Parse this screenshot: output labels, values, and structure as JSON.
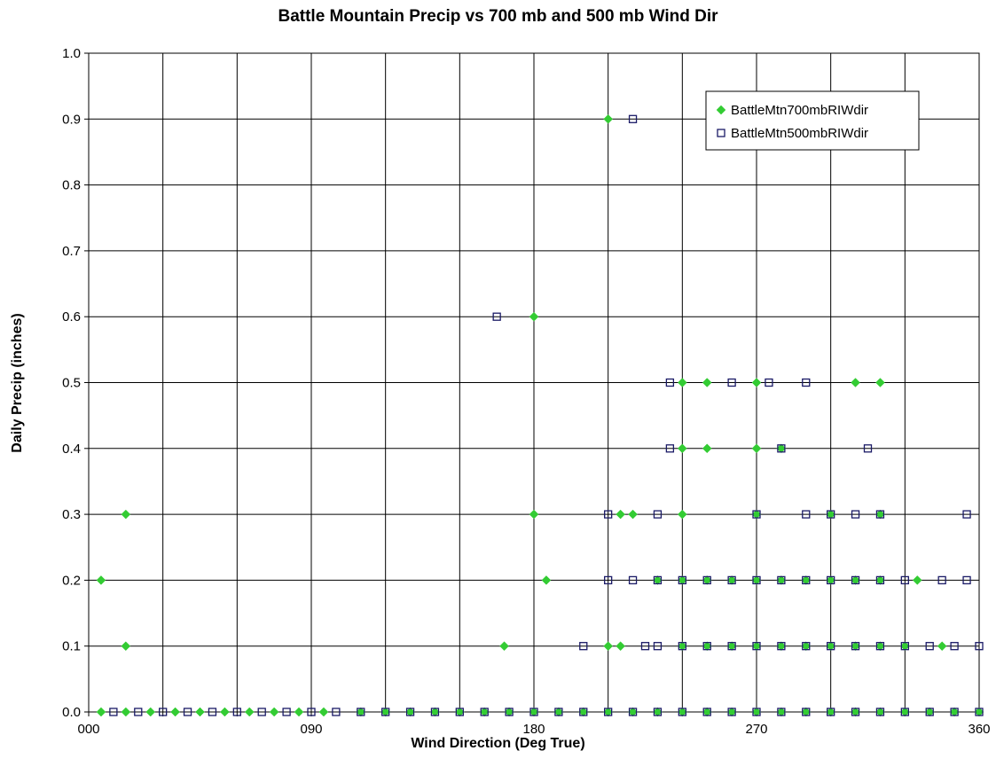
{
  "chart_data": {
    "type": "scatter",
    "title": "Battle Mountain Precip vs 700 mb and 500 mb Wind Dir",
    "xlabel": "Wind Direction (Deg True)",
    "ylabel": "Daily Precip (inches)",
    "xlim": [
      0,
      360
    ],
    "ylim": [
      0,
      1.0
    ],
    "x_ticks": [
      0,
      90,
      180,
      270,
      360
    ],
    "x_tick_labels": [
      "000",
      "090",
      "180",
      "270",
      "360"
    ],
    "x_gridlines_every": 30,
    "y_ticks": [
      0.0,
      0.1,
      0.2,
      0.3,
      0.4,
      0.5,
      0.6,
      0.7,
      0.8,
      0.9,
      1.0
    ],
    "y_tick_labels": [
      "0.0",
      "0.1",
      "0.2",
      "0.3",
      "0.4",
      "0.5",
      "0.6",
      "0.7",
      "0.8",
      "0.9",
      "1.0"
    ],
    "grid": true,
    "legend_position": "top-right",
    "series": [
      {
        "name": "BattleMtn700mbRIWdir",
        "marker": "diamond",
        "color": "#33cc33",
        "points": [
          [
            5,
            0
          ],
          [
            15,
            0
          ],
          [
            25,
            0
          ],
          [
            35,
            0
          ],
          [
            45,
            0
          ],
          [
            55,
            0
          ],
          [
            65,
            0
          ],
          [
            75,
            0
          ],
          [
            85,
            0
          ],
          [
            95,
            0
          ],
          [
            110,
            0
          ],
          [
            120,
            0
          ],
          [
            130,
            0
          ],
          [
            140,
            0
          ],
          [
            150,
            0
          ],
          [
            160,
            0
          ],
          [
            170,
            0
          ],
          [
            180,
            0
          ],
          [
            190,
            0
          ],
          [
            200,
            0
          ],
          [
            210,
            0
          ],
          [
            220,
            0
          ],
          [
            230,
            0
          ],
          [
            240,
            0
          ],
          [
            250,
            0
          ],
          [
            260,
            0
          ],
          [
            270,
            0
          ],
          [
            280,
            0
          ],
          [
            290,
            0
          ],
          [
            300,
            0
          ],
          [
            310,
            0
          ],
          [
            320,
            0
          ],
          [
            330,
            0
          ],
          [
            340,
            0
          ],
          [
            350,
            0
          ],
          [
            360,
            0
          ],
          [
            15,
            0.1
          ],
          [
            168,
            0.1
          ],
          [
            210,
            0.1
          ],
          [
            215,
            0.1
          ],
          [
            240,
            0.1
          ],
          [
            250,
            0.1
          ],
          [
            260,
            0.1
          ],
          [
            270,
            0.1
          ],
          [
            280,
            0.1
          ],
          [
            290,
            0.1
          ],
          [
            300,
            0.1
          ],
          [
            310,
            0.1
          ],
          [
            320,
            0.1
          ],
          [
            330,
            0.1
          ],
          [
            345,
            0.1
          ],
          [
            5,
            0.2
          ],
          [
            185,
            0.2
          ],
          [
            230,
            0.2
          ],
          [
            240,
            0.2
          ],
          [
            250,
            0.2
          ],
          [
            260,
            0.2
          ],
          [
            270,
            0.2
          ],
          [
            280,
            0.2
          ],
          [
            290,
            0.2
          ],
          [
            300,
            0.2
          ],
          [
            310,
            0.2
          ],
          [
            320,
            0.2
          ],
          [
            335,
            0.2
          ],
          [
            15,
            0.3
          ],
          [
            180,
            0.3
          ],
          [
            215,
            0.3
          ],
          [
            220,
            0.3
          ],
          [
            240,
            0.3
          ],
          [
            270,
            0.3
          ],
          [
            300,
            0.3
          ],
          [
            320,
            0.3
          ],
          [
            240,
            0.4
          ],
          [
            250,
            0.4
          ],
          [
            270,
            0.4
          ],
          [
            280,
            0.4
          ],
          [
            240,
            0.5
          ],
          [
            250,
            0.5
          ],
          [
            270,
            0.5
          ],
          [
            310,
            0.5
          ],
          [
            320,
            0.5
          ],
          [
            180,
            0.6
          ],
          [
            210,
            0.9
          ]
        ]
      },
      {
        "name": "BattleMtn500mbRIWdir",
        "marker": "square",
        "color": "#1a1a66",
        "points": [
          [
            10,
            0
          ],
          [
            20,
            0
          ],
          [
            30,
            0
          ],
          [
            40,
            0
          ],
          [
            50,
            0
          ],
          [
            60,
            0
          ],
          [
            70,
            0
          ],
          [
            80,
            0
          ],
          [
            90,
            0
          ],
          [
            100,
            0
          ],
          [
            110,
            0
          ],
          [
            120,
            0
          ],
          [
            130,
            0
          ],
          [
            140,
            0
          ],
          [
            150,
            0
          ],
          [
            160,
            0
          ],
          [
            170,
            0
          ],
          [
            180,
            0
          ],
          [
            190,
            0
          ],
          [
            200,
            0
          ],
          [
            210,
            0
          ],
          [
            220,
            0
          ],
          [
            230,
            0
          ],
          [
            240,
            0
          ],
          [
            250,
            0
          ],
          [
            260,
            0
          ],
          [
            270,
            0
          ],
          [
            280,
            0
          ],
          [
            290,
            0
          ],
          [
            300,
            0
          ],
          [
            310,
            0
          ],
          [
            320,
            0
          ],
          [
            330,
            0
          ],
          [
            340,
            0
          ],
          [
            350,
            0
          ],
          [
            360,
            0
          ],
          [
            200,
            0.1
          ],
          [
            225,
            0.1
          ],
          [
            230,
            0.1
          ],
          [
            240,
            0.1
          ],
          [
            250,
            0.1
          ],
          [
            260,
            0.1
          ],
          [
            270,
            0.1
          ],
          [
            280,
            0.1
          ],
          [
            290,
            0.1
          ],
          [
            300,
            0.1
          ],
          [
            310,
            0.1
          ],
          [
            320,
            0.1
          ],
          [
            330,
            0.1
          ],
          [
            340,
            0.1
          ],
          [
            350,
            0.1
          ],
          [
            360,
            0.1
          ],
          [
            210,
            0.2
          ],
          [
            220,
            0.2
          ],
          [
            230,
            0.2
          ],
          [
            240,
            0.2
          ],
          [
            250,
            0.2
          ],
          [
            260,
            0.2
          ],
          [
            270,
            0.2
          ],
          [
            280,
            0.2
          ],
          [
            290,
            0.2
          ],
          [
            300,
            0.2
          ],
          [
            310,
            0.2
          ],
          [
            320,
            0.2
          ],
          [
            330,
            0.2
          ],
          [
            345,
            0.2
          ],
          [
            355,
            0.2
          ],
          [
            210,
            0.3
          ],
          [
            230,
            0.3
          ],
          [
            270,
            0.3
          ],
          [
            290,
            0.3
          ],
          [
            300,
            0.3
          ],
          [
            310,
            0.3
          ],
          [
            320,
            0.3
          ],
          [
            355,
            0.3
          ],
          [
            235,
            0.4
          ],
          [
            280,
            0.4
          ],
          [
            315,
            0.4
          ],
          [
            235,
            0.5
          ],
          [
            260,
            0.5
          ],
          [
            275,
            0.5
          ],
          [
            290,
            0.5
          ],
          [
            165,
            0.6
          ],
          [
            220,
            0.9
          ]
        ]
      }
    ]
  }
}
